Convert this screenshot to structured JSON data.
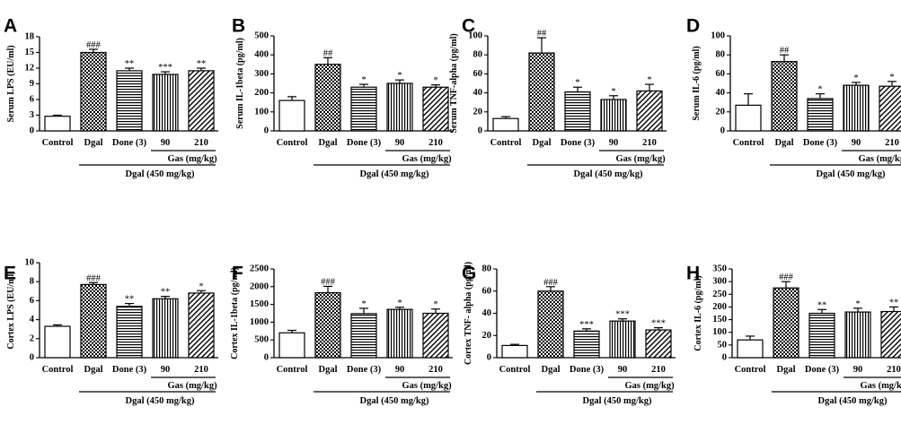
{
  "chart_data": [
    {
      "panel": "A",
      "type": "bar",
      "ylabel": "Serum LPS (EU/ml)",
      "ylim": [
        0,
        18
      ],
      "yticks": [
        0,
        3,
        6,
        9,
        12,
        15,
        18
      ],
      "categories": [
        "Control",
        "Dgal",
        "Done (3)",
        "90",
        "210"
      ],
      "values": [
        2.8,
        15.0,
        11.5,
        10.8,
        11.5
      ],
      "errors": [
        0.2,
        0.6,
        0.5,
        0.5,
        0.5
      ],
      "annotations": [
        "",
        "###",
        "**",
        "***",
        "**"
      ],
      "subgroup_label": "Gas (mg/kg)",
      "group_label": "Dgal (450 mg/kg)"
    },
    {
      "panel": "B",
      "type": "bar",
      "ylabel": "Serum IL-1beta (pg/ml)",
      "ylim": [
        0,
        500
      ],
      "yticks": [
        0,
        100,
        200,
        300,
        400,
        500
      ],
      "categories": [
        "Control",
        "Dgal",
        "Done (3)",
        "90",
        "210"
      ],
      "values": [
        160,
        350,
        230,
        250,
        230
      ],
      "errors": [
        20,
        35,
        15,
        18,
        12
      ],
      "annotations": [
        "",
        "##",
        "*",
        "*",
        "*"
      ],
      "subgroup_label": "Gas (mg/kg)",
      "group_label": "Dgal (450 mg/kg)"
    },
    {
      "panel": "C",
      "type": "bar",
      "ylabel": "Serum TNF-alpha (pg/ml)",
      "ylim": [
        0,
        100
      ],
      "yticks": [
        0,
        20,
        40,
        60,
        80,
        100
      ],
      "categories": [
        "Control",
        "Dgal",
        "Done (3)",
        "90",
        "210"
      ],
      "values": [
        13,
        82,
        41,
        33,
        42
      ],
      "errors": [
        2,
        16,
        5,
        4,
        7
      ],
      "annotations": [
        "",
        "##",
        "*",
        "*",
        "*"
      ],
      "subgroup_label": "Gas (mg/kg)",
      "group_label": "Dgal (450 mg/kg)"
    },
    {
      "panel": "D",
      "type": "bar",
      "ylabel": "Serum IL-6 (pg/ml)",
      "ylim": [
        0,
        100
      ],
      "yticks": [
        0,
        20,
        40,
        60,
        80,
        100
      ],
      "categories": [
        "Control",
        "Dgal",
        "Done (3)",
        "90",
        "210"
      ],
      "values": [
        27,
        73,
        34,
        48,
        47
      ],
      "errors": [
        12,
        7,
        5,
        3,
        5
      ],
      "annotations": [
        "",
        "##",
        "*",
        "*",
        "*"
      ],
      "subgroup_label": "Gas (mg/kg)",
      "group_label": "Dgal (450 mg/kg)"
    },
    {
      "panel": "E",
      "type": "bar",
      "ylabel": "Cortex LPS (EU/ml)",
      "ylim": [
        0,
        10
      ],
      "yticks": [
        0,
        2,
        4,
        6,
        8,
        10
      ],
      "categories": [
        "Control",
        "Dgal",
        "Done (3)",
        "90",
        "210"
      ],
      "values": [
        3.3,
        7.7,
        5.4,
        6.2,
        6.8
      ],
      "errors": [
        0.15,
        0.2,
        0.3,
        0.25,
        0.25
      ],
      "annotations": [
        "",
        "###",
        "**",
        "**",
        "*"
      ],
      "subgroup_label": "Gas (mg/kg)",
      "group_label": "Dgal (450 mg/kg)"
    },
    {
      "panel": "F",
      "type": "bar",
      "ylabel": "Cortex IL-1beta (pg/ml)",
      "ylim": [
        0,
        2500
      ],
      "yticks": [
        0,
        500,
        1000,
        1500,
        2000,
        2500
      ],
      "categories": [
        "Control",
        "Dgal",
        "Done (3)",
        "90",
        "210"
      ],
      "values": [
        700,
        1830,
        1240,
        1360,
        1250
      ],
      "errors": [
        70,
        180,
        150,
        60,
        120
      ],
      "annotations": [
        "",
        "###",
        "*",
        "*",
        "*"
      ],
      "subgroup_label": "Gas (mg/kg)",
      "group_label": "Dgal (450 mg/kg)"
    },
    {
      "panel": "G",
      "type": "bar",
      "ylabel": "Cortex TNF- alpha (pg/ml)",
      "ylim": [
        0,
        80
      ],
      "yticks": [
        0,
        20,
        40,
        60,
        80
      ],
      "categories": [
        "Control",
        "Dgal",
        "Done (3)",
        "90",
        "210"
      ],
      "values": [
        11,
        60,
        24,
        33,
        25
      ],
      "errors": [
        1,
        4,
        2,
        2,
        2
      ],
      "annotations": [
        "",
        "###",
        "***",
        "***",
        "***"
      ],
      "subgroup_label": "Gas (mg/kg)",
      "group_label": "Dgal (450 mg/kg)"
    },
    {
      "panel": "H",
      "type": "bar",
      "ylabel": "Cortex IL-6 (pg/ml)",
      "ylim": [
        0,
        350
      ],
      "yticks": [
        0,
        50,
        100,
        150,
        200,
        250,
        300,
        350
      ],
      "categories": [
        "Control",
        "Dgal",
        "Done (3)",
        "90",
        "210"
      ],
      "values": [
        70,
        275,
        175,
        180,
        182
      ],
      "errors": [
        15,
        25,
        15,
        15,
        18
      ],
      "annotations": [
        "",
        "###",
        "**",
        "*",
        "**"
      ],
      "subgroup_label": "Gas (mg/kg)",
      "group_label": "Dgal (450 mg/kg)"
    }
  ]
}
